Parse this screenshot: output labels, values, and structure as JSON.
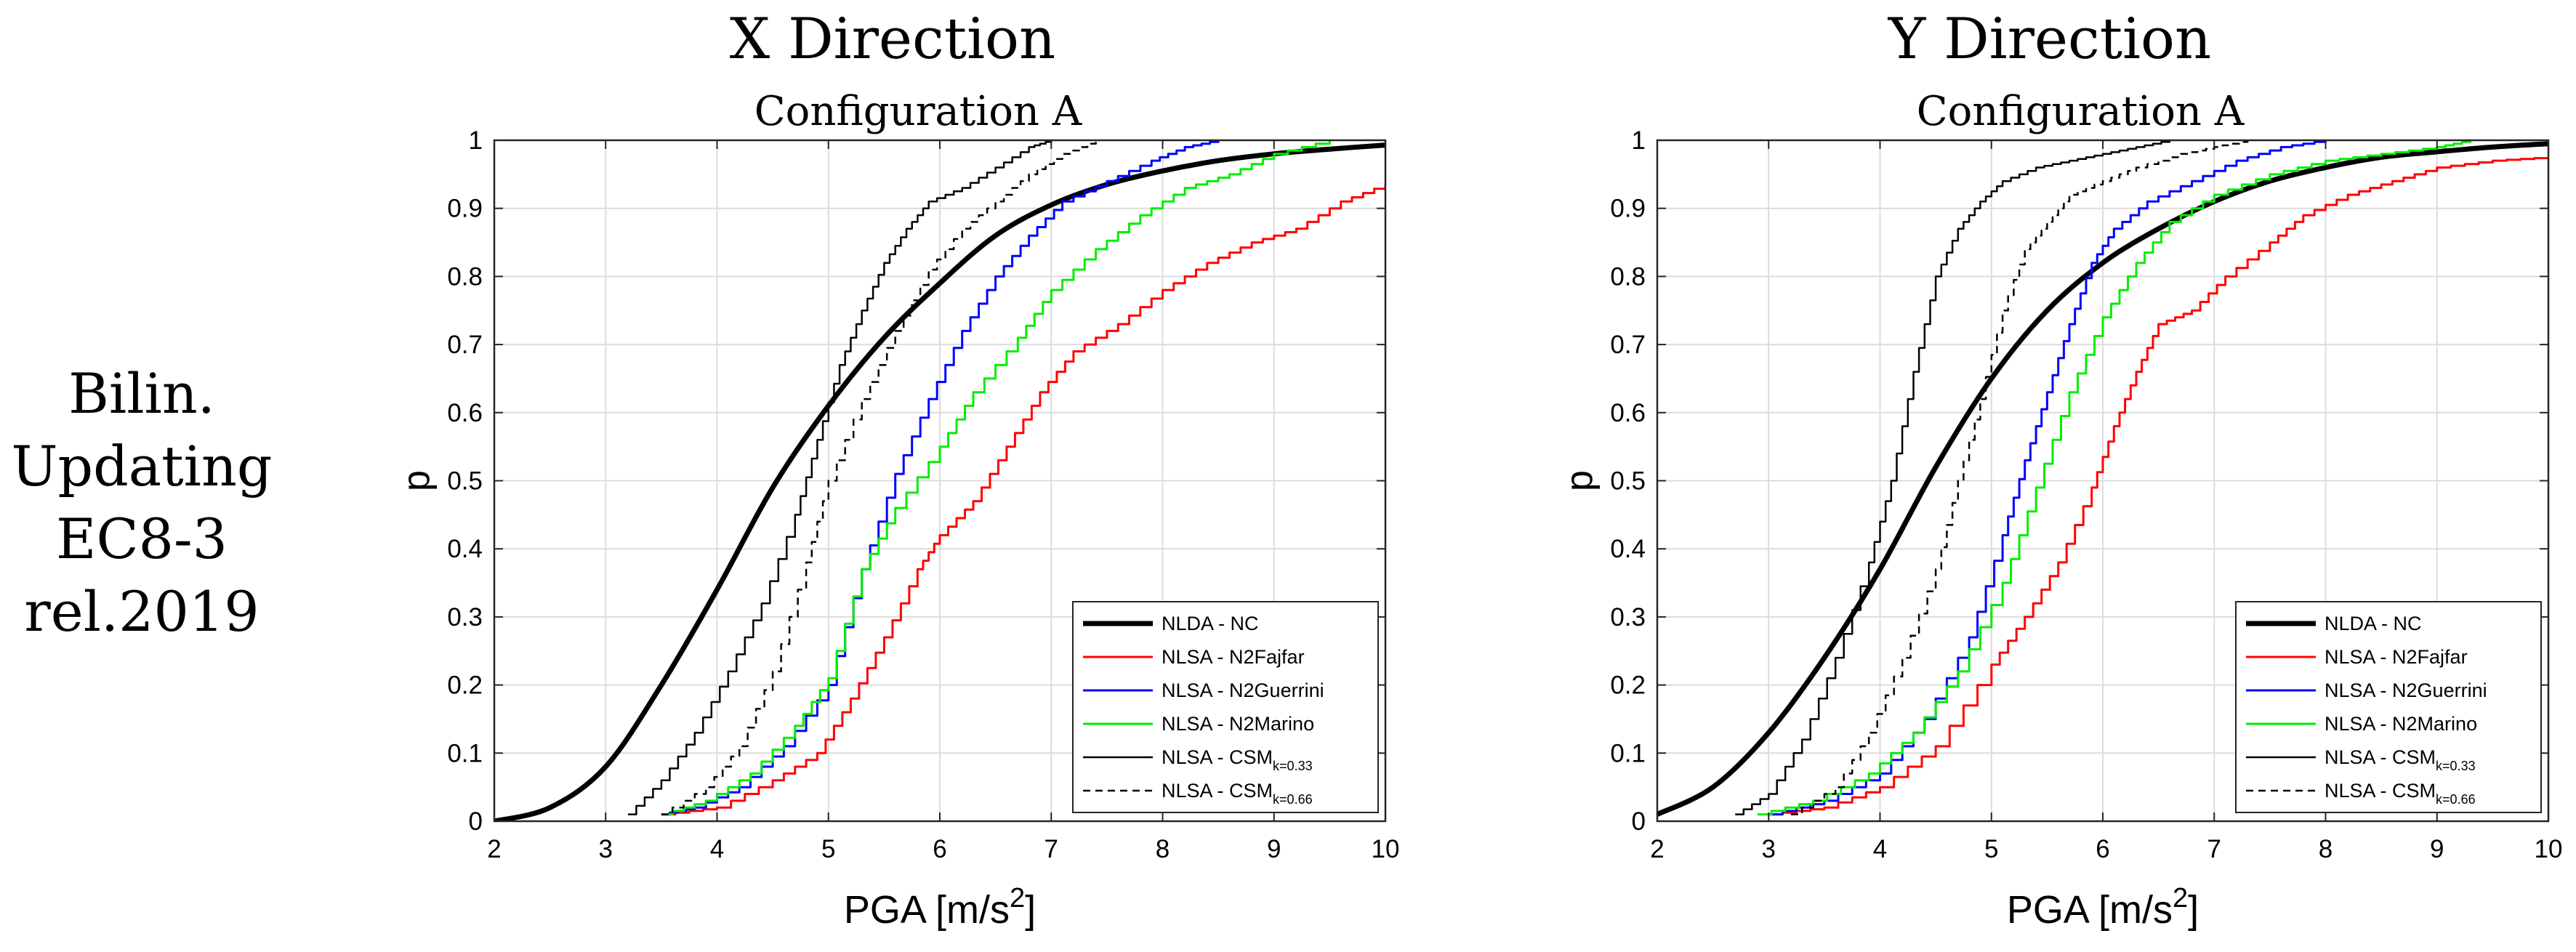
{
  "figure": {
    "side_label": [
      "Bilin.",
      "Updating",
      "EC8-3",
      "rel.2019"
    ]
  },
  "chart_data": [
    {
      "type": "line",
      "title": "X Direction",
      "subtitle": "Configuration A",
      "xlabel": "PGA [m/s",
      "xlabel_sup": "2",
      "xlabel_end": "]",
      "ylabel": "p",
      "xlim": [
        2,
        10
      ],
      "ylim": [
        0,
        1
      ],
      "xticks": [
        "2",
        "3",
        "4",
        "5",
        "6",
        "7",
        "8",
        "9",
        "10"
      ],
      "yticks": [
        "0",
        "0.1",
        "0.2",
        "0.3",
        "0.4",
        "0.5",
        "0.6",
        "0.7",
        "0.8",
        "0.9",
        "1"
      ],
      "grid": true,
      "legend_position": "bottom-right",
      "series": [
        {
          "name": "NLDA - NC",
          "color": "#000000",
          "width": 7,
          "dash": "",
          "kind": "smooth",
          "x": [
            2.0,
            2.5,
            3.0,
            3.5,
            4.0,
            4.5,
            5.0,
            5.5,
            6.0,
            6.5,
            7.0,
            7.5,
            8.0,
            8.5,
            9.0,
            9.5,
            10.0
          ],
          "y": [
            0.0,
            0.02,
            0.08,
            0.2,
            0.34,
            0.49,
            0.61,
            0.71,
            0.79,
            0.86,
            0.905,
            0.935,
            0.955,
            0.97,
            0.98,
            0.987,
            0.993
          ]
        },
        {
          "name": "NLSA - N2Fajfar",
          "color": "#ff0000",
          "width": 3,
          "dash": "",
          "kind": "step",
          "x": [
            3.5,
            4.0,
            4.5,
            4.9,
            5.2,
            5.5,
            5.8,
            6.0,
            6.3,
            6.6,
            6.9,
            7.2,
            7.6,
            8.0,
            8.4,
            8.8,
            9.2,
            9.6,
            10.0
          ],
          "y": [
            0.01,
            0.02,
            0.06,
            0.1,
            0.18,
            0.27,
            0.37,
            0.42,
            0.47,
            0.55,
            0.63,
            0.69,
            0.73,
            0.78,
            0.82,
            0.85,
            0.87,
            0.91,
            0.935
          ]
        },
        {
          "name": "NLSA - N2Guerrini",
          "color": "#0000ff",
          "width": 3,
          "dash": "",
          "kind": "step",
          "x": [
            3.5,
            3.8,
            4.2,
            4.6,
            5.0,
            5.3,
            5.6,
            5.9,
            6.2,
            6.5,
            6.8,
            7.1,
            7.5,
            7.9,
            8.2,
            8.5
          ],
          "y": [
            0.01,
            0.02,
            0.05,
            0.11,
            0.2,
            0.37,
            0.51,
            0.62,
            0.72,
            0.8,
            0.86,
            0.91,
            0.94,
            0.97,
            0.99,
            1.0
          ]
        },
        {
          "name": "NLSA - N2Marino",
          "color": "#00ee00",
          "width": 3,
          "dash": "",
          "kind": "step",
          "x": [
            3.5,
            3.9,
            4.3,
            4.7,
            5.0,
            5.3,
            5.6,
            6.0,
            6.3,
            6.7,
            7.0,
            7.4,
            7.8,
            8.2,
            8.6,
            9.0,
            9.5
          ],
          "y": [
            0.01,
            0.03,
            0.07,
            0.14,
            0.21,
            0.37,
            0.46,
            0.55,
            0.63,
            0.71,
            0.78,
            0.84,
            0.89,
            0.93,
            0.95,
            0.98,
            1.0
          ]
        },
        {
          "name": "NLSA - CSM",
          "name_sub": "k=0.33",
          "color": "#000000",
          "width": 2.5,
          "dash": "",
          "kind": "step",
          "x": [
            3.2,
            3.5,
            3.8,
            4.1,
            4.4,
            4.7,
            4.9,
            5.1,
            5.3,
            5.5,
            5.7,
            5.9,
            6.2,
            6.5,
            6.8,
            7.0
          ],
          "y": [
            0.01,
            0.06,
            0.13,
            0.22,
            0.32,
            0.45,
            0.56,
            0.67,
            0.75,
            0.82,
            0.87,
            0.91,
            0.93,
            0.96,
            0.99,
            1.0
          ]
        },
        {
          "name": "NLSA - CSM",
          "name_sub": "k=0.66",
          "color": "#000000",
          "width": 2.5,
          "dash": "10,7",
          "kind": "step",
          "x": [
            3.5,
            3.9,
            4.2,
            4.5,
            4.8,
            5.0,
            5.3,
            5.6,
            5.9,
            6.2,
            6.5,
            6.8,
            7.1,
            7.4
          ],
          "y": [
            0.01,
            0.05,
            0.11,
            0.22,
            0.38,
            0.5,
            0.62,
            0.72,
            0.81,
            0.87,
            0.91,
            0.95,
            0.98,
            1.0
          ]
        }
      ]
    },
    {
      "type": "line",
      "title": "Y Direction",
      "subtitle": "Configuration A",
      "xlabel": "PGA [m/s",
      "xlabel_sup": "2",
      "xlabel_end": "]",
      "ylabel": "p",
      "xlim": [
        2,
        10
      ],
      "ylim": [
        0,
        1
      ],
      "xticks": [
        "2",
        "3",
        "4",
        "5",
        "6",
        "7",
        "8",
        "9",
        "10"
      ],
      "yticks": [
        "0",
        "0.1",
        "0.2",
        "0.3",
        "0.4",
        "0.5",
        "0.6",
        "0.7",
        "0.8",
        "0.9",
        "1"
      ],
      "grid": true,
      "legend_position": "bottom-right",
      "series": [
        {
          "name": "NLDA - NC",
          "color": "#000000",
          "width": 7,
          "dash": "",
          "kind": "smooth",
          "x": [
            2.0,
            2.5,
            3.0,
            3.5,
            4.0,
            4.5,
            5.0,
            5.5,
            6.0,
            6.5,
            7.0,
            7.5,
            8.0,
            8.5,
            9.0,
            9.5,
            10.0
          ],
          "y": [
            0.01,
            0.05,
            0.13,
            0.24,
            0.37,
            0.52,
            0.65,
            0.75,
            0.82,
            0.87,
            0.91,
            0.94,
            0.96,
            0.975,
            0.983,
            0.99,
            0.995
          ]
        },
        {
          "name": "NLSA - N2Fajfar",
          "color": "#ff0000",
          "width": 3,
          "dash": "",
          "kind": "step",
          "x": [
            3.0,
            3.5,
            4.0,
            4.5,
            5.0,
            5.3,
            5.6,
            5.9,
            6.1,
            6.3,
            6.5,
            6.8,
            7.1,
            7.5,
            7.8,
            8.2,
            8.6,
            9.0,
            9.5,
            10.0
          ],
          "y": [
            0.01,
            0.02,
            0.05,
            0.11,
            0.23,
            0.3,
            0.38,
            0.49,
            0.58,
            0.66,
            0.73,
            0.75,
            0.8,
            0.85,
            0.89,
            0.92,
            0.94,
            0.96,
            0.97,
            0.975
          ]
        },
        {
          "name": "NLSA - N2Guerrini",
          "color": "#0000ff",
          "width": 3,
          "dash": "",
          "kind": "step",
          "x": [
            3.0,
            3.5,
            4.0,
            4.4,
            4.8,
            5.1,
            5.3,
            5.5,
            5.7,
            5.9,
            6.1,
            6.4,
            6.8,
            7.2,
            7.6,
            8.0
          ],
          "y": [
            0.01,
            0.03,
            0.07,
            0.15,
            0.27,
            0.42,
            0.53,
            0.63,
            0.73,
            0.82,
            0.87,
            0.91,
            0.94,
            0.97,
            0.99,
            1.0
          ]
        },
        {
          "name": "NLSA - N2Marino",
          "color": "#00ee00",
          "width": 3,
          "dash": "",
          "kind": "step",
          "x": [
            2.9,
            3.4,
            3.9,
            4.3,
            4.7,
            5.1,
            5.4,
            5.7,
            6.0,
            6.3,
            6.6,
            7.0,
            7.5,
            8.0,
            8.5,
            9.0,
            9.3
          ],
          "y": [
            0.01,
            0.03,
            0.07,
            0.13,
            0.22,
            0.35,
            0.49,
            0.63,
            0.74,
            0.82,
            0.88,
            0.92,
            0.95,
            0.97,
            0.98,
            0.99,
            1.0
          ]
        },
        {
          "name": "NLSA - CSM",
          "name_sub": "k=0.33",
          "color": "#000000",
          "width": 2.5,
          "dash": "",
          "kind": "step",
          "x": [
            2.7,
            3.0,
            3.3,
            3.6,
            3.9,
            4.1,
            4.3,
            4.5,
            4.7,
            4.9,
            5.1,
            5.4,
            5.7,
            6.0,
            6.3,
            6.6
          ],
          "y": [
            0.01,
            0.04,
            0.12,
            0.24,
            0.38,
            0.5,
            0.66,
            0.8,
            0.87,
            0.91,
            0.94,
            0.96,
            0.97,
            0.98,
            0.99,
            1.0
          ]
        },
        {
          "name": "NLSA - CSM",
          "name_sub": "k=0.66",
          "color": "#000000",
          "width": 2.5,
          "dash": "10,7",
          "kind": "step",
          "x": [
            3.2,
            3.6,
            3.9,
            4.2,
            4.5,
            4.7,
            4.9,
            5.1,
            5.3,
            5.5,
            5.7,
            6.0,
            6.3,
            6.7,
            7.0,
            7.3
          ],
          "y": [
            0.01,
            0.05,
            0.13,
            0.24,
            0.37,
            0.5,
            0.62,
            0.75,
            0.84,
            0.88,
            0.92,
            0.94,
            0.96,
            0.98,
            0.99,
            1.0
          ]
        }
      ]
    }
  ]
}
